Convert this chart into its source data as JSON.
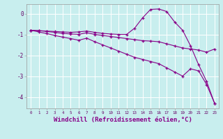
{
  "x": [
    0,
    1,
    2,
    3,
    4,
    5,
    6,
    7,
    8,
    9,
    10,
    11,
    12,
    13,
    14,
    15,
    16,
    17,
    18,
    19,
    20,
    21,
    22,
    23
  ],
  "line_top": [
    -0.8,
    -0.82,
    -0.84,
    -0.86,
    -0.88,
    -0.9,
    -0.88,
    -0.84,
    -0.9,
    -0.95,
    -0.98,
    -1.0,
    -1.0,
    -0.7,
    -0.2,
    0.2,
    0.22,
    0.1,
    -0.4,
    -0.8,
    -1.55,
    -2.45,
    -3.25,
    -4.3
  ],
  "line_mid": [
    -0.8,
    -0.82,
    -0.86,
    -0.9,
    -0.95,
    -0.98,
    -1.0,
    -0.92,
    -1.0,
    -1.05,
    -1.1,
    -1.15,
    -1.2,
    -1.25,
    -1.3,
    -1.32,
    -1.35,
    -1.45,
    -1.55,
    -1.65,
    -1.7,
    -1.75,
    -1.85,
    -1.7
  ],
  "line_bot": [
    -0.8,
    -0.88,
    -0.96,
    -1.05,
    -1.13,
    -1.2,
    -1.28,
    -1.18,
    -1.35,
    -1.5,
    -1.65,
    -1.8,
    -1.95,
    -2.1,
    -2.2,
    -2.3,
    -2.4,
    -2.6,
    -2.8,
    -3.0,
    -2.65,
    -2.75,
    -3.4,
    -4.3
  ],
  "line_color": "#880088",
  "bg_color": "#c8eeee",
  "grid_color": "#aadddd",
  "xlabel": "Windchill (Refroidissement éolien,°C)",
  "xlabel_fontsize": 6.5,
  "ytick_labels": [
    "0",
    "-1",
    "-2",
    "-3",
    "-4"
  ],
  "ytick_vals": [
    0,
    -1,
    -2,
    -3,
    -4
  ],
  "xlim": [
    -0.5,
    23.5
  ],
  "ylim": [
    -4.55,
    0.45
  ]
}
